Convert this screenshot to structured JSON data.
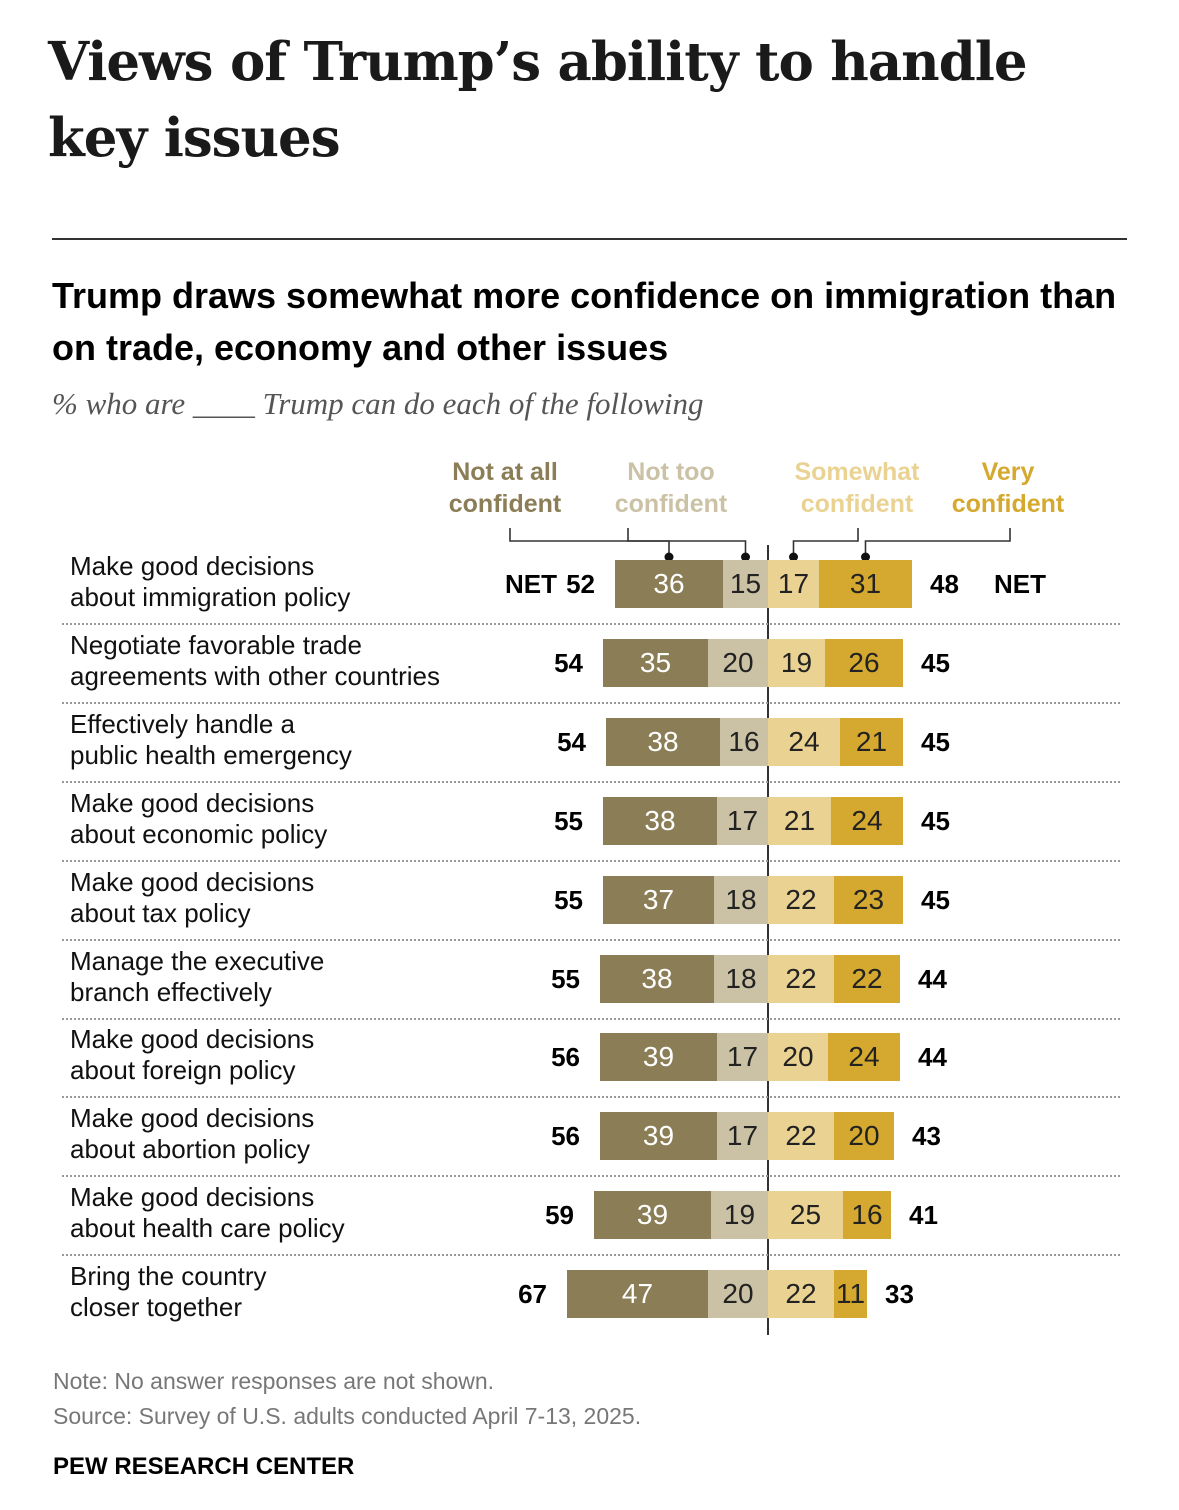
{
  "page_title": "Views of Trump’s ability to handle key issues",
  "chart_data": {
    "type": "bar",
    "title": "Trump draws somewhat more confidence on immigration than on trade, economy and other issues",
    "subtitle": "% who are ____ Trump can do each of the following",
    "legend": [
      "Not at all confident",
      "Not too confident",
      "Somewhat confident",
      "Very confident"
    ],
    "colors": [
      "#8b7e56",
      "#cbc2a6",
      "#ead292",
      "#d5a92f"
    ],
    "net_label": "NET",
    "categories": [
      "Make good decisions\nabout immigration policy",
      "Negotiate favorable trade\nagreements with other countries",
      "Effectively handle a\npublic health emergency",
      "Make good decisions\nabout economic policy",
      "Make good decisions\nabout tax policy",
      "Manage the executive\nbranch effectively",
      "Make good decisions\nabout foreign policy",
      "Make good decisions\nabout abortion policy",
      "Make good decisions\nabout health care policy",
      "Bring the country\ncloser together"
    ],
    "series": [
      {
        "name": "Not at all confident",
        "values": [
          36,
          35,
          38,
          38,
          37,
          38,
          39,
          39,
          39,
          47
        ]
      },
      {
        "name": "Not too confident",
        "values": [
          15,
          20,
          16,
          17,
          18,
          18,
          17,
          17,
          19,
          20
        ]
      },
      {
        "name": "Somewhat confident",
        "values": [
          17,
          19,
          24,
          21,
          22,
          22,
          20,
          22,
          25,
          22
        ]
      },
      {
        "name": "Very confident",
        "values": [
          31,
          26,
          21,
          24,
          23,
          22,
          24,
          20,
          16,
          11
        ]
      }
    ],
    "net_not_confident": [
      52,
      54,
      54,
      55,
      55,
      55,
      56,
      56,
      59,
      67
    ],
    "net_confident": [
      48,
      45,
      45,
      45,
      45,
      44,
      44,
      43,
      41,
      33
    ]
  },
  "footer": {
    "note": "Note: No answer responses are not shown.",
    "source": "Source: Survey of U.S. adults conducted April 7-13, 2025.",
    "brand": "PEW RESEARCH CENTER"
  }
}
